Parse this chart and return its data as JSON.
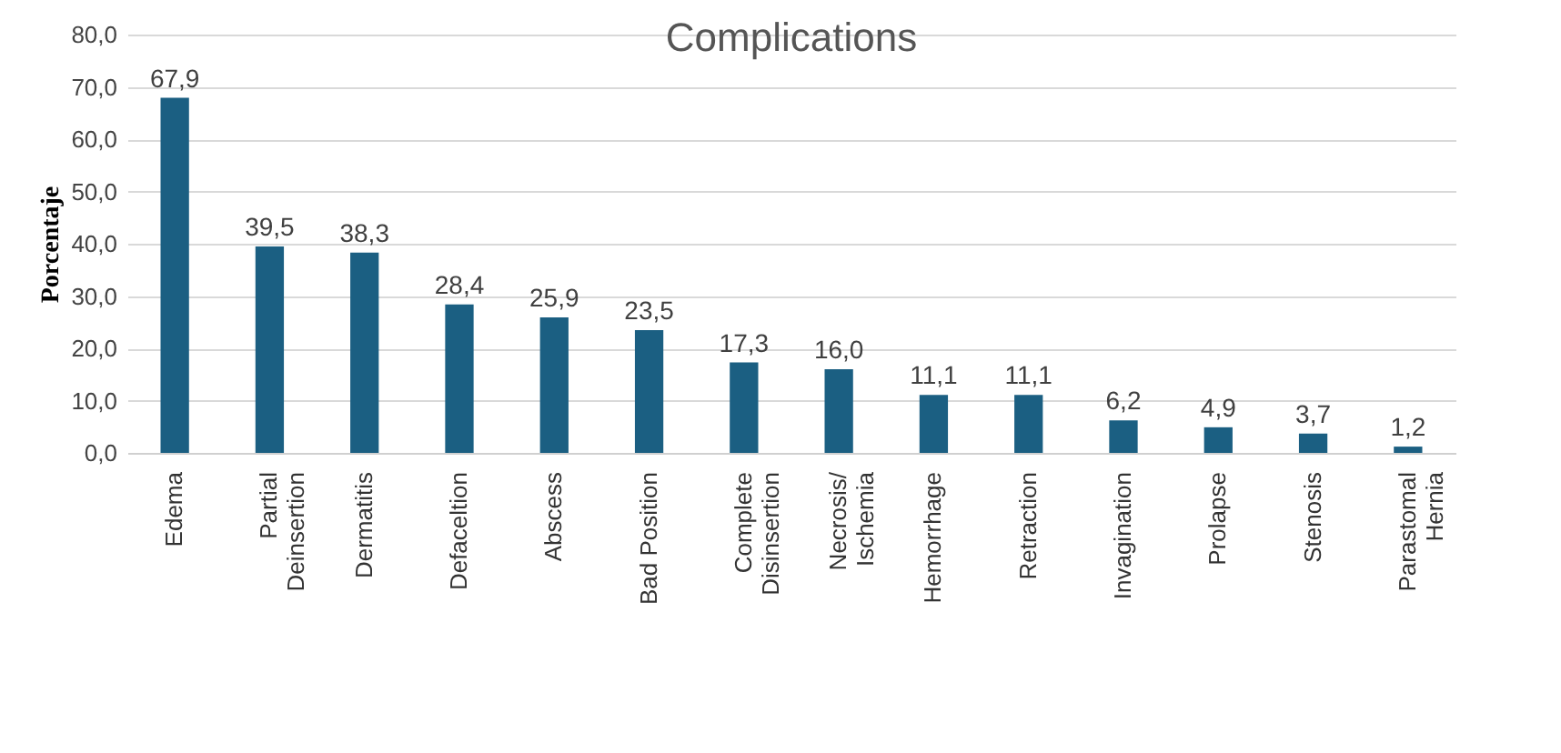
{
  "chart_data": {
    "type": "bar",
    "title": "Complications",
    "ylabel": "Porcentaje",
    "categories": [
      "Edema",
      "Partial\nDeinsertion",
      "Dermatitis",
      "Defaceltion",
      "Abscess",
      "Bad Position",
      "Complete\nDisinsertion",
      "Necrosis/\nIschemia",
      "Hemorrhage",
      "Retraction",
      "Invagination",
      "Prolapse",
      "Stenosis",
      "Parastomal\nHernia"
    ],
    "values": [
      67.9,
      39.5,
      38.3,
      28.4,
      25.9,
      23.5,
      17.3,
      16.0,
      11.1,
      11.1,
      6.2,
      4.9,
      3.7,
      1.2
    ],
    "value_labels": [
      "67,9",
      "39,5",
      "38,3",
      "28,4",
      "25,9",
      "23,5",
      "17,3",
      "16,0",
      "11,1",
      "11,1",
      "6,2",
      "4,9",
      "3,7",
      "1,2"
    ],
    "color": "#1b5f82",
    "ylim": [
      0,
      80
    ],
    "yticks": [
      {
        "value": 0,
        "label": "0,0"
      },
      {
        "value": 10,
        "label": "10,0"
      },
      {
        "value": 20,
        "label": "20,0"
      },
      {
        "value": 30,
        "label": "30,0"
      },
      {
        "value": 40,
        "label": "40,0"
      },
      {
        "value": 50,
        "label": "50,0"
      },
      {
        "value": 60,
        "label": "60,0"
      },
      {
        "value": 70,
        "label": "70,0"
      },
      {
        "value": 80,
        "label": "80,0"
      }
    ],
    "grid": "y"
  }
}
